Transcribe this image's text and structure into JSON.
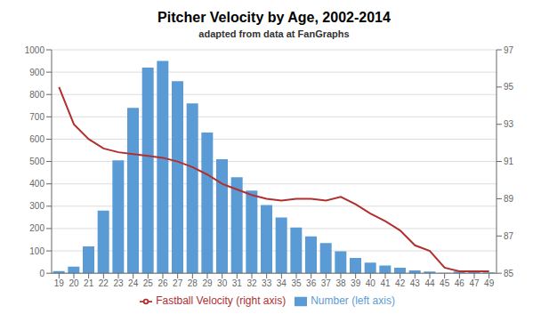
{
  "chart_data": {
    "type": "bar",
    "title": "Pitcher Velocity by Age, 2002-2014",
    "subtitle": "adapted from data at FanGraphs",
    "categories": [
      "19",
      "20",
      "21",
      "22",
      "23",
      "24",
      "25",
      "26",
      "27",
      "28",
      "29",
      "30",
      "31",
      "32",
      "33",
      "34",
      "35",
      "36",
      "37",
      "38",
      "39",
      "40",
      "41",
      "42",
      "43",
      "44",
      "45",
      "46",
      "47",
      "49"
    ],
    "series": [
      {
        "name": "Number (left axis)",
        "type": "bar",
        "color": "#5B9BD5",
        "values": [
          10,
          30,
          120,
          280,
          505,
          740,
          920,
          950,
          860,
          760,
          630,
          510,
          430,
          370,
          305,
          250,
          205,
          165,
          135,
          98,
          68,
          47,
          35,
          25,
          13,
          8,
          2,
          8,
          5,
          4
        ]
      },
      {
        "name": "Fastball Velocity (right axis)",
        "type": "line",
        "color": "#B03030",
        "axis": "y2",
        "values": [
          95.0,
          93.0,
          92.2,
          91.7,
          91.5,
          91.4,
          91.3,
          91.2,
          91.0,
          90.7,
          90.3,
          89.8,
          89.5,
          89.2,
          89.0,
          88.9,
          89.0,
          89.0,
          88.9,
          89.1,
          88.7,
          88.2,
          87.8,
          87.3,
          86.5,
          86.2,
          85.3,
          85.1,
          85.1,
          85.1
        ]
      }
    ],
    "ylim": [
      0,
      1000
    ],
    "yticks": [
      0,
      100,
      200,
      300,
      400,
      500,
      600,
      700,
      800,
      900,
      1000
    ],
    "y2lim": [
      85.0,
      97.0
    ],
    "y2ticks": [
      85,
      87,
      89,
      91,
      93,
      95,
      97
    ],
    "grid": true,
    "legend": "bottom"
  }
}
